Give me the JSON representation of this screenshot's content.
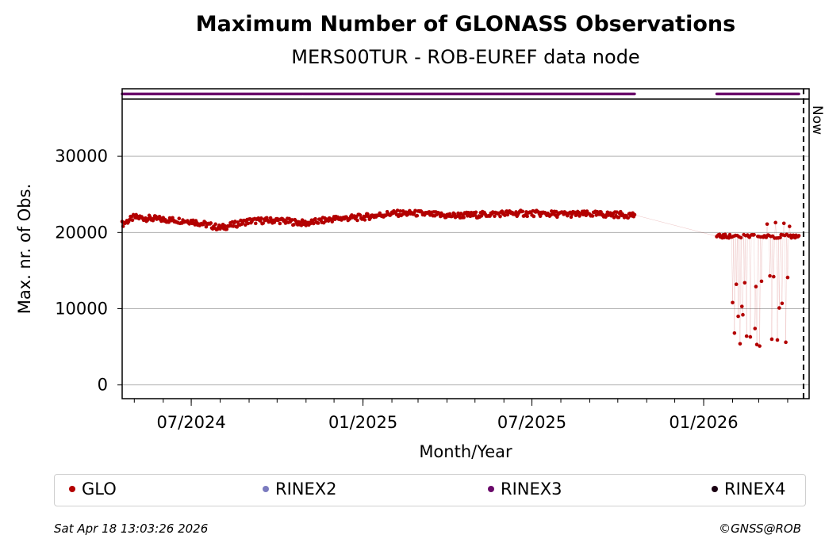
{
  "header": {
    "title": "Maximum Number of GLONASS Observations",
    "subtitle": "MERS00TUR - ROB-EUREF data node"
  },
  "footer": {
    "timestamp": "Sat Apr 18 13:03:26 2026",
    "copyright": "©GNSS@ROB"
  },
  "colors": {
    "GLO": "#b30000",
    "RINEX2": "#7b7bbf",
    "RINEX3": "#6a0a6a",
    "RINEX4": "#1a0012",
    "grid": "#b0b0b0"
  },
  "chart_data": {
    "type": "scatter",
    "xlabel": "Month/Year",
    "ylabel": "Max. nr. of Obs.",
    "x_ticks": [
      "07/2024",
      "01/2025",
      "07/2025",
      "01/2026"
    ],
    "y_ticks": [
      "0",
      "10000",
      "20000",
      "30000"
    ],
    "ylim": [
      -1800,
      37500
    ],
    "xlim": [
      "2024-04-18",
      "2026-04-24"
    ],
    "grid": "horizontal",
    "now_marker": {
      "label": "Now",
      "date": "2026-04-18"
    },
    "legend": [
      "GLO",
      "RINEX2",
      "RINEX3",
      "RINEX4"
    ],
    "legend_position": "below",
    "series": [
      {
        "name": "GLO",
        "segments": [
          {
            "from": "2024-04-18",
            "to": "2025-10-19",
            "trend": [
              [
                "2024-04-18",
                21100
              ],
              [
                "2024-05-01",
                22000
              ],
              [
                "2024-06-01",
                21700
              ],
              [
                "2024-07-01",
                21500
              ],
              [
                "2024-08-01",
                20600
              ],
              [
                "2024-09-01",
                21500
              ],
              [
                "2024-10-01",
                21600
              ],
              [
                "2024-11-01",
                21200
              ],
              [
                "2024-12-01",
                21800
              ],
              [
                "2025-01-01",
                22000
              ],
              [
                "2025-02-01",
                22500
              ],
              [
                "2025-03-01",
                22500
              ],
              [
                "2025-04-01",
                22200
              ],
              [
                "2025-05-01",
                22300
              ],
              [
                "2025-06-01",
                22500
              ],
              [
                "2025-07-01",
                22500
              ],
              [
                "2025-08-01",
                22400
              ],
              [
                "2025-09-01",
                22400
              ],
              [
                "2025-10-19",
                22300
              ]
            ]
          },
          {
            "from": "2026-01-15",
            "to": "2026-04-13",
            "base": 19500,
            "outliers": [
              [
                "2026-02-01",
                10800
              ],
              [
                "2026-02-03",
                6800
              ],
              [
                "2026-02-05",
                13200
              ],
              [
                "2026-02-07",
                9000
              ],
              [
                "2026-02-09",
                5400
              ],
              [
                "2026-02-11",
                10300
              ],
              [
                "2026-02-12",
                9200
              ],
              [
                "2026-02-14",
                13400
              ],
              [
                "2026-02-16",
                6400
              ],
              [
                "2026-02-20",
                6300
              ],
              [
                "2026-02-25",
                7400
              ],
              [
                "2026-02-26",
                12900
              ],
              [
                "2026-02-27",
                5300
              ],
              [
                "2026-03-02",
                5100
              ],
              [
                "2026-03-04",
                13600
              ],
              [
                "2026-03-10",
                21100
              ],
              [
                "2026-03-13",
                14300
              ],
              [
                "2026-03-15",
                6000
              ],
              [
                "2026-03-17",
                14200
              ],
              [
                "2026-03-19",
                21300
              ],
              [
                "2026-03-21",
                5900
              ],
              [
                "2026-03-23",
                10100
              ],
              [
                "2026-03-26",
                10700
              ],
              [
                "2026-03-28",
                21200
              ],
              [
                "2026-03-30",
                5600
              ],
              [
                "2026-04-01",
                14100
              ],
              [
                "2026-04-03",
                20800
              ]
            ]
          }
        ]
      },
      {
        "name": "RINEX3",
        "availability": [
          [
            "2024-04-18",
            "2025-10-19"
          ],
          [
            "2026-01-15",
            "2026-04-13"
          ]
        ]
      }
    ]
  }
}
